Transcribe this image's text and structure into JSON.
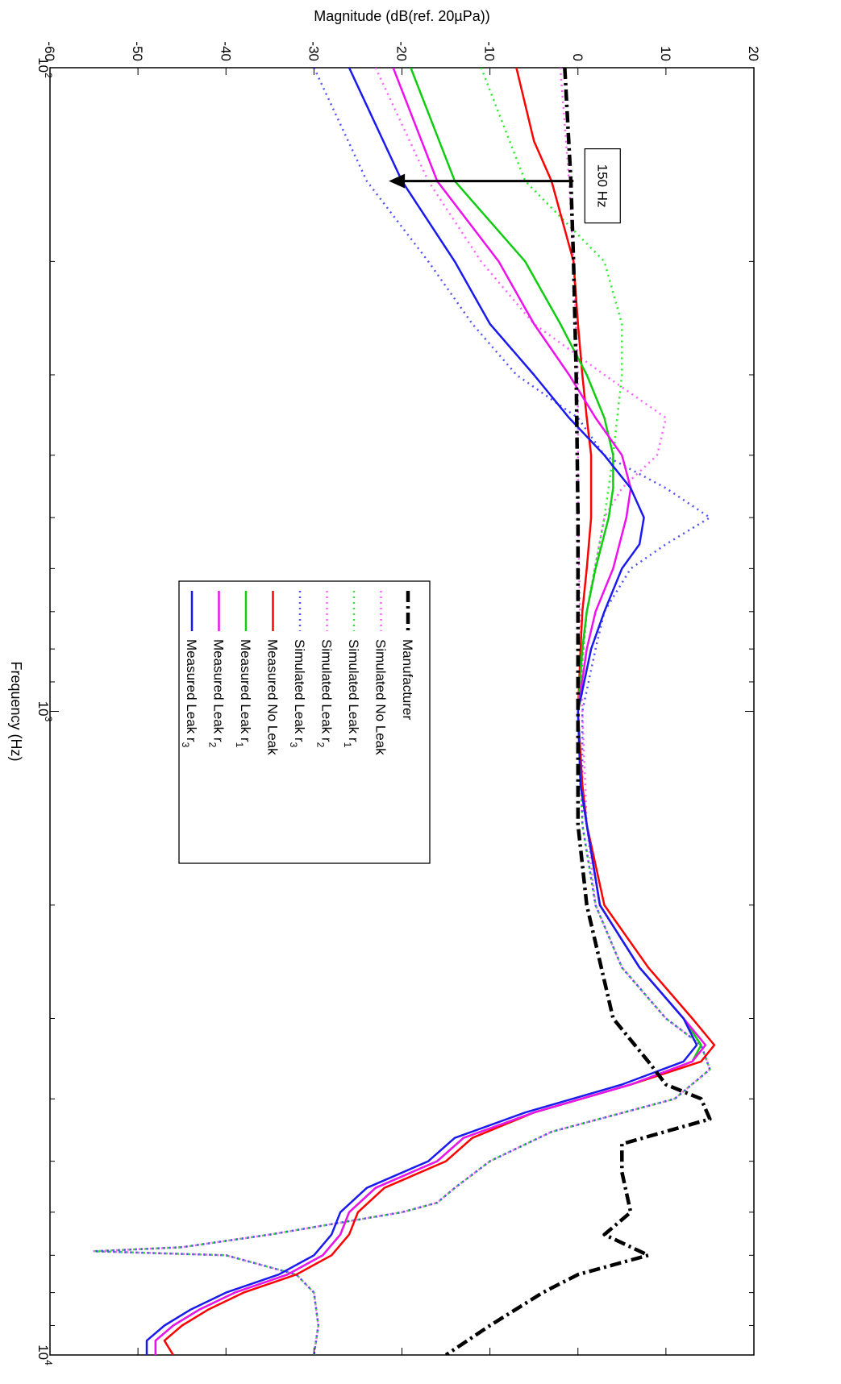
{
  "chart_data": {
    "type": "line",
    "title": "",
    "xlabel": "Frequency (Hz)",
    "ylabel": "Magnitude (dB(ref. 20µPa))",
    "xscale": "log",
    "xlim": [
      100,
      10000
    ],
    "ylim": [
      -60,
      20
    ],
    "grid": false,
    "orientation": "rotated 90 degrees clockwise (frequency runs top-to-bottom, magnitude left-to-right)",
    "legend_placement": "center-left",
    "x_ticks": [
      {
        "base": "10",
        "exp": "2",
        "value": 100
      },
      {
        "base": "10",
        "exp": "3",
        "value": 1000
      },
      {
        "base": "10",
        "exp": "4",
        "value": 10000
      }
    ],
    "y_ticks": [
      "-60",
      "-50",
      "-40",
      "-30",
      "-20",
      "-10",
      "0",
      "10",
      "20"
    ],
    "annotation": {
      "text": "150 Hz",
      "x": 150,
      "y_from": -0.5,
      "y_to": -21.5
    },
    "series": [
      {
        "name": "Manufacturer",
        "label": "Manufacturer",
        "sub": "",
        "color": "#000000",
        "dash": "14,5,3,5",
        "width": 4.5,
        "points": [
          [
            100,
            -1.5
          ],
          [
            150,
            -0.8
          ],
          [
            200,
            -0.5
          ],
          [
            300,
            -0.2
          ],
          [
            500,
            0
          ],
          [
            1000,
            0
          ],
          [
            1500,
            0
          ],
          [
            2000,
            1
          ],
          [
            3000,
            4
          ],
          [
            3500,
            8
          ],
          [
            3800,
            10
          ],
          [
            4000,
            14
          ],
          [
            4300,
            15
          ],
          [
            4700,
            5
          ],
          [
            5200,
            5
          ],
          [
            6000,
            6
          ],
          [
            6500,
            3
          ],
          [
            7000,
            8
          ],
          [
            7500,
            0
          ],
          [
            8000,
            -4
          ],
          [
            9000,
            -10
          ],
          [
            10000,
            -15
          ]
        ]
      },
      {
        "name": "Simulated No Leak",
        "label": "Simulated No Leak",
        "sub": "",
        "color": "#ff60ff",
        "dash": "2,5",
        "width": 2.5,
        "points": [
          [
            100,
            -2
          ],
          [
            150,
            -1
          ],
          [
            200,
            -0.5
          ],
          [
            300,
            0
          ],
          [
            500,
            0
          ],
          [
            1000,
            0.5
          ],
          [
            1500,
            1
          ],
          [
            2000,
            2
          ],
          [
            2500,
            5
          ],
          [
            3000,
            10
          ],
          [
            3300,
            14
          ],
          [
            3600,
            15
          ],
          [
            4000,
            11
          ],
          [
            4500,
            -3
          ],
          [
            5000,
            -10
          ],
          [
            5500,
            -14
          ],
          [
            5800,
            -16
          ],
          [
            6000,
            -20
          ],
          [
            6500,
            -35
          ],
          [
            6800,
            -45
          ],
          [
            6900,
            -55
          ],
          [
            7000,
            -40
          ],
          [
            7500,
            -32
          ],
          [
            8000,
            -30
          ],
          [
            9000,
            -29.5
          ],
          [
            10000,
            -30
          ]
        ]
      },
      {
        "name": "Simulated Leak r1",
        "label": "Simulated Leak r",
        "sub": "1",
        "color": "#22ee22",
        "dash": "2,5",
        "width": 2.5,
        "points": [
          [
            100,
            -11
          ],
          [
            150,
            -6
          ],
          [
            200,
            3
          ],
          [
            250,
            5
          ],
          [
            300,
            5
          ],
          [
            400,
            4
          ],
          [
            500,
            3
          ],
          [
            700,
            1
          ],
          [
            1000,
            0
          ],
          [
            1500,
            0.5
          ],
          [
            2000,
            2
          ],
          [
            2500,
            5
          ],
          [
            3000,
            10
          ],
          [
            3300,
            14
          ],
          [
            3600,
            15
          ],
          [
            4000,
            11
          ],
          [
            4500,
            -3
          ],
          [
            5000,
            -10
          ],
          [
            5500,
            -14
          ],
          [
            5800,
            -16
          ],
          [
            6000,
            -20
          ],
          [
            6500,
            -35
          ],
          [
            6800,
            -45
          ],
          [
            6900,
            -55
          ],
          [
            7000,
            -40
          ],
          [
            7500,
            -32
          ],
          [
            8000,
            -30
          ],
          [
            9000,
            -29.5
          ],
          [
            10000,
            -30
          ]
        ]
      },
      {
        "name": "Simulated Leak r2",
        "label": "Simulated Leak r",
        "sub": "2",
        "color": "#ff60ff",
        "dash": "2,5",
        "width": 2.5,
        "points": [
          [
            100,
            -23
          ],
          [
            150,
            -17
          ],
          [
            200,
            -11
          ],
          [
            250,
            -5
          ],
          [
            300,
            3
          ],
          [
            350,
            10
          ],
          [
            400,
            9
          ],
          [
            450,
            5
          ],
          [
            500,
            3
          ],
          [
            700,
            1
          ],
          [
            1000,
            0
          ],
          [
            1500,
            0.5
          ],
          [
            2000,
            2
          ],
          [
            2500,
            5
          ],
          [
            3000,
            10
          ],
          [
            3300,
            14
          ],
          [
            3600,
            15
          ],
          [
            4000,
            11
          ],
          [
            4500,
            -3
          ],
          [
            5000,
            -10
          ],
          [
            5500,
            -14
          ],
          [
            5800,
            -16
          ],
          [
            6000,
            -20
          ],
          [
            6500,
            -35
          ],
          [
            6800,
            -45
          ],
          [
            6900,
            -55
          ],
          [
            7000,
            -40
          ],
          [
            7500,
            -32
          ],
          [
            8000,
            -30
          ],
          [
            9000,
            -29.5
          ],
          [
            10000,
            -30
          ]
        ]
      },
      {
        "name": "Simulated Leak r3",
        "label": "Simulated Leak r",
        "sub": "3",
        "color": "#5050ff",
        "dash": "2,5",
        "width": 2.5,
        "points": [
          [
            100,
            -30
          ],
          [
            150,
            -24
          ],
          [
            200,
            -17
          ],
          [
            250,
            -12
          ],
          [
            300,
            -7
          ],
          [
            350,
            0
          ],
          [
            400,
            3
          ],
          [
            450,
            10
          ],
          [
            500,
            15
          ],
          [
            550,
            10
          ],
          [
            600,
            6
          ],
          [
            700,
            3
          ],
          [
            800,
            2
          ],
          [
            1000,
            0.5
          ],
          [
            1500,
            0.5
          ],
          [
            2000,
            2
          ],
          [
            2500,
            5
          ],
          [
            3000,
            10
          ],
          [
            3300,
            14
          ],
          [
            3600,
            15
          ],
          [
            4000,
            11
          ],
          [
            4500,
            -3
          ],
          [
            5000,
            -10
          ],
          [
            5500,
            -14
          ],
          [
            5800,
            -16
          ],
          [
            6000,
            -20
          ],
          [
            6500,
            -35
          ],
          [
            6800,
            -45
          ],
          [
            6900,
            -55
          ],
          [
            7000,
            -40
          ],
          [
            7500,
            -32
          ],
          [
            8000,
            -30
          ],
          [
            9000,
            -29.5
          ],
          [
            10000,
            -30
          ]
        ]
      },
      {
        "name": "Measured No Leak",
        "label": "Measured No Leak",
        "sub": "",
        "color": "#ff0000",
        "dash": "",
        "width": 2.5,
        "points": [
          [
            100,
            -7
          ],
          [
            130,
            -5
          ],
          [
            150,
            -3
          ],
          [
            200,
            -0.5
          ],
          [
            250,
            0
          ],
          [
            300,
            0.5
          ],
          [
            350,
            1
          ],
          [
            400,
            1.5
          ],
          [
            500,
            1.5
          ],
          [
            600,
            1
          ],
          [
            700,
            0.5
          ],
          [
            800,
            0.3
          ],
          [
            1000,
            0
          ],
          [
            1300,
            0.5
          ],
          [
            1500,
            1
          ],
          [
            2000,
            3
          ],
          [
            2500,
            8
          ],
          [
            3000,
            13
          ],
          [
            3300,
            15.5
          ],
          [
            3500,
            14
          ],
          [
            3800,
            6
          ],
          [
            4200,
            -5
          ],
          [
            4600,
            -12
          ],
          [
            5000,
            -15
          ],
          [
            5500,
            -22
          ],
          [
            6000,
            -25
          ],
          [
            6500,
            -26
          ],
          [
            7000,
            -28
          ],
          [
            7500,
            -32
          ],
          [
            8000,
            -38
          ],
          [
            8500,
            -42
          ],
          [
            9000,
            -45
          ],
          [
            9500,
            -47
          ],
          [
            10000,
            -46
          ]
        ]
      },
      {
        "name": "Measured Leak r1",
        "label": "Measured Leak r",
        "sub": "1",
        "color": "#11cc11",
        "dash": "",
        "width": 2.5,
        "points": [
          [
            100,
            -19
          ],
          [
            150,
            -14
          ],
          [
            200,
            -6
          ],
          [
            250,
            -2
          ],
          [
            300,
            1
          ],
          [
            350,
            3
          ],
          [
            400,
            4
          ],
          [
            450,
            4
          ],
          [
            500,
            3.5
          ],
          [
            600,
            2
          ],
          [
            700,
            1
          ],
          [
            800,
            0.5
          ],
          [
            1000,
            0
          ],
          [
            1300,
            0.3
          ],
          [
            1500,
            1
          ],
          [
            2000,
            2.5
          ],
          [
            2500,
            7
          ],
          [
            3000,
            12
          ],
          [
            3300,
            14
          ],
          [
            3500,
            13
          ],
          [
            3800,
            6
          ],
          [
            4200,
            -5
          ],
          [
            4600,
            -13
          ],
          [
            5000,
            -16
          ],
          [
            5500,
            -23
          ],
          [
            6000,
            -26
          ],
          [
            6500,
            -27
          ],
          [
            7000,
            -29
          ],
          [
            7500,
            -33
          ],
          [
            8000,
            -39
          ],
          [
            8500,
            -43
          ],
          [
            9000,
            -46
          ],
          [
            9500,
            -48
          ],
          [
            10000,
            -48
          ]
        ]
      },
      {
        "name": "Measured Leak r2",
        "label": "Measured Leak r",
        "sub": "2",
        "color": "#ee11ee",
        "dash": "",
        "width": 2.5,
        "points": [
          [
            100,
            -21
          ],
          [
            150,
            -16
          ],
          [
            200,
            -9
          ],
          [
            250,
            -5
          ],
          [
            300,
            -1
          ],
          [
            350,
            2
          ],
          [
            400,
            5
          ],
          [
            450,
            6
          ],
          [
            500,
            5.5
          ],
          [
            600,
            4
          ],
          [
            700,
            2
          ],
          [
            800,
            1
          ],
          [
            1000,
            0
          ],
          [
            1300,
            0.3
          ],
          [
            1500,
            1
          ],
          [
            2000,
            2.5
          ],
          [
            2500,
            7
          ],
          [
            3000,
            12
          ],
          [
            3300,
            14.5
          ],
          [
            3500,
            13
          ],
          [
            3800,
            6
          ],
          [
            4200,
            -5
          ],
          [
            4600,
            -13
          ],
          [
            5000,
            -16
          ],
          [
            5500,
            -23
          ],
          [
            6000,
            -26
          ],
          [
            6500,
            -27
          ],
          [
            7000,
            -29
          ],
          [
            7500,
            -33
          ],
          [
            8000,
            -39
          ],
          [
            8500,
            -43
          ],
          [
            9000,
            -46
          ],
          [
            9500,
            -48
          ],
          [
            10000,
            -48
          ]
        ]
      },
      {
        "name": "Measured Leak r3",
        "label": "Measured Leak r",
        "sub": "3",
        "color": "#1a1aee",
        "dash": "",
        "width": 2.5,
        "points": [
          [
            100,
            -26
          ],
          [
            150,
            -20
          ],
          [
            200,
            -14
          ],
          [
            250,
            -10
          ],
          [
            300,
            -5
          ],
          [
            350,
            -1
          ],
          [
            400,
            3
          ],
          [
            450,
            6
          ],
          [
            500,
            7.5
          ],
          [
            550,
            7
          ],
          [
            600,
            5
          ],
          [
            700,
            3
          ],
          [
            800,
            1.5
          ],
          [
            1000,
            0
          ],
          [
            1300,
            0.3
          ],
          [
            1500,
            1
          ],
          [
            2000,
            2.5
          ],
          [
            2500,
            7
          ],
          [
            3000,
            12
          ],
          [
            3300,
            13.5
          ],
          [
            3500,
            12
          ],
          [
            3800,
            5
          ],
          [
            4200,
            -6
          ],
          [
            4600,
            -14
          ],
          [
            5000,
            -17
          ],
          [
            5500,
            -24
          ],
          [
            6000,
            -27
          ],
          [
            6500,
            -28
          ],
          [
            7000,
            -30
          ],
          [
            7500,
            -34
          ],
          [
            8000,
            -40
          ],
          [
            8500,
            -44
          ],
          [
            9000,
            -47
          ],
          [
            9500,
            -49
          ],
          [
            10000,
            -49
          ]
        ]
      }
    ]
  }
}
